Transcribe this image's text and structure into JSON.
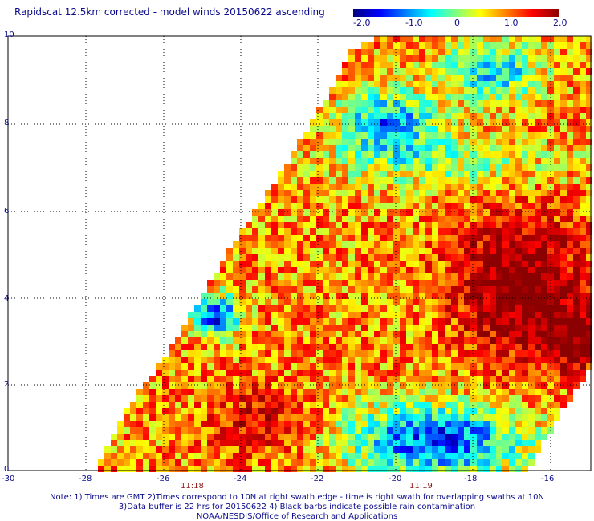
{
  "title": "Rapidscat 12.5km corrected - model winds 20150622 ascending",
  "colorbar": {
    "ticks": [
      "-2.0",
      "-1.0",
      "0",
      "1.0",
      "2.0"
    ],
    "colors": [
      "#000080",
      "#0000ff",
      "#00ffff",
      "#ffff00",
      "#ff0000",
      "#8b0000"
    ]
  },
  "y_axis": {
    "ticks": [
      "10",
      "8",
      "6",
      "4",
      "2",
      "0"
    ]
  },
  "x_axis": {
    "ticks": [
      "-30",
      "-28",
      "-26",
      "-24",
      "-22",
      "-20",
      "-18",
      "-16"
    ]
  },
  "time_labels": [
    "11:18",
    "11:19"
  ],
  "footer": {
    "line1": "Note: 1) Times are GMT 2)Times correspond to 10N at right swath edge - time is right swath for overlapping swaths at 10N",
    "line2": "3)Data buffer is 22 hrs for 20150622 4) Black barbs indicate possible rain contamination",
    "line3": "NOAA/NESDIS/Office of Research and Applications"
  }
}
